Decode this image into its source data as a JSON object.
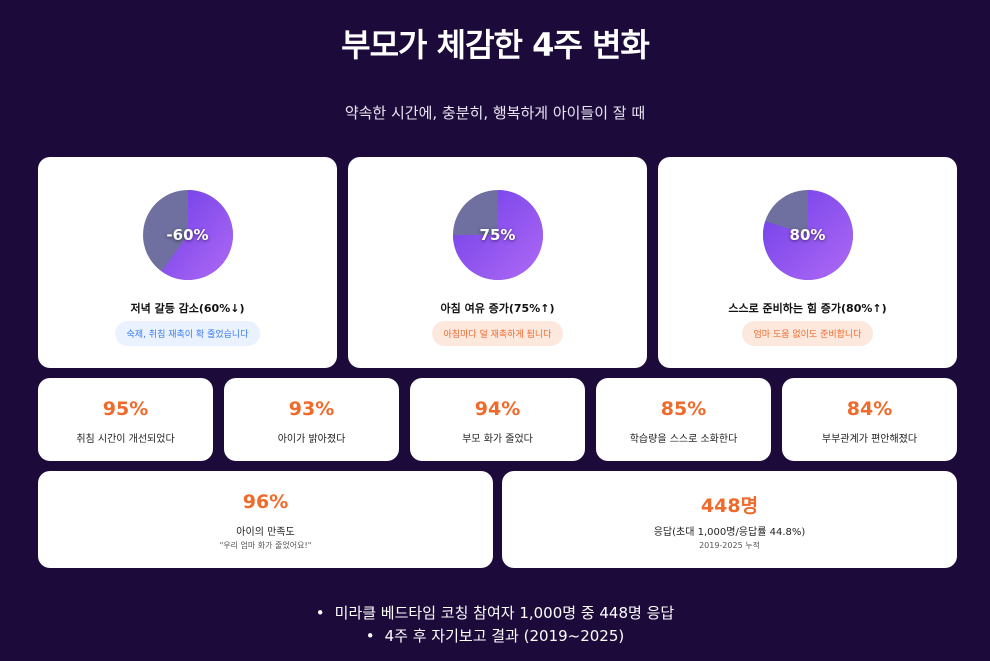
{
  "header": {
    "title": "부모가 체감한 4주 변화",
    "subtitle": "약속한 시간에, 충분히, 행복하게 아이들이 잘 때"
  },
  "colors": {
    "background": "#1c0b3a",
    "accent_orange": "#ef6a2b",
    "pie_purple": "#8b57ef",
    "pie_gray": "#6f6fa0"
  },
  "top_cards": [
    {
      "pie_label": "-60%",
      "pie_fraction": 0.6,
      "title": "저녁 갈등 감소(60%↓)",
      "pill": "숙제, 취침 재촉이 확 줄었습니다",
      "pill_color": "blue"
    },
    {
      "pie_label": "75%",
      "pie_fraction": 0.75,
      "title": "아침 여유 증가(75%↑)",
      "pill": "아침마다 덜 재촉하게 됩니다",
      "pill_color": "orange"
    },
    {
      "pie_label": "80%",
      "pie_fraction": 0.8,
      "title": "스스로 준비하는 힘 증가(80%↑)",
      "pill": "엄마 도움 없이도 준비합니다",
      "pill_color": "orange"
    }
  ],
  "stats": [
    {
      "value": "95%",
      "label": "취침 시간이 개선되었다"
    },
    {
      "value": "93%",
      "label": "아이가 밝아졌다"
    },
    {
      "value": "94%",
      "label": "부모 화가 줄었다"
    },
    {
      "value": "85%",
      "label": "학습량을 스스로 소화한다"
    },
    {
      "value": "84%",
      "label": "부부관계가 편안해졌다"
    }
  ],
  "bottom_cards": [
    {
      "value": "96%",
      "label": "아이의 만족도",
      "note": "\"우리 엄마 화가 줄었어요!\""
    },
    {
      "value": "448명",
      "label": "응답(초대 1,000명/응답률 44.8%)",
      "note": "2019-2025 누적"
    }
  ],
  "footer": {
    "bullet": "•",
    "line1": "미라클 베드타임 코칭 참여자 1,000명 중 448명 응답",
    "line2": "4주 후 자기보고 결과 (2019~2025)"
  }
}
